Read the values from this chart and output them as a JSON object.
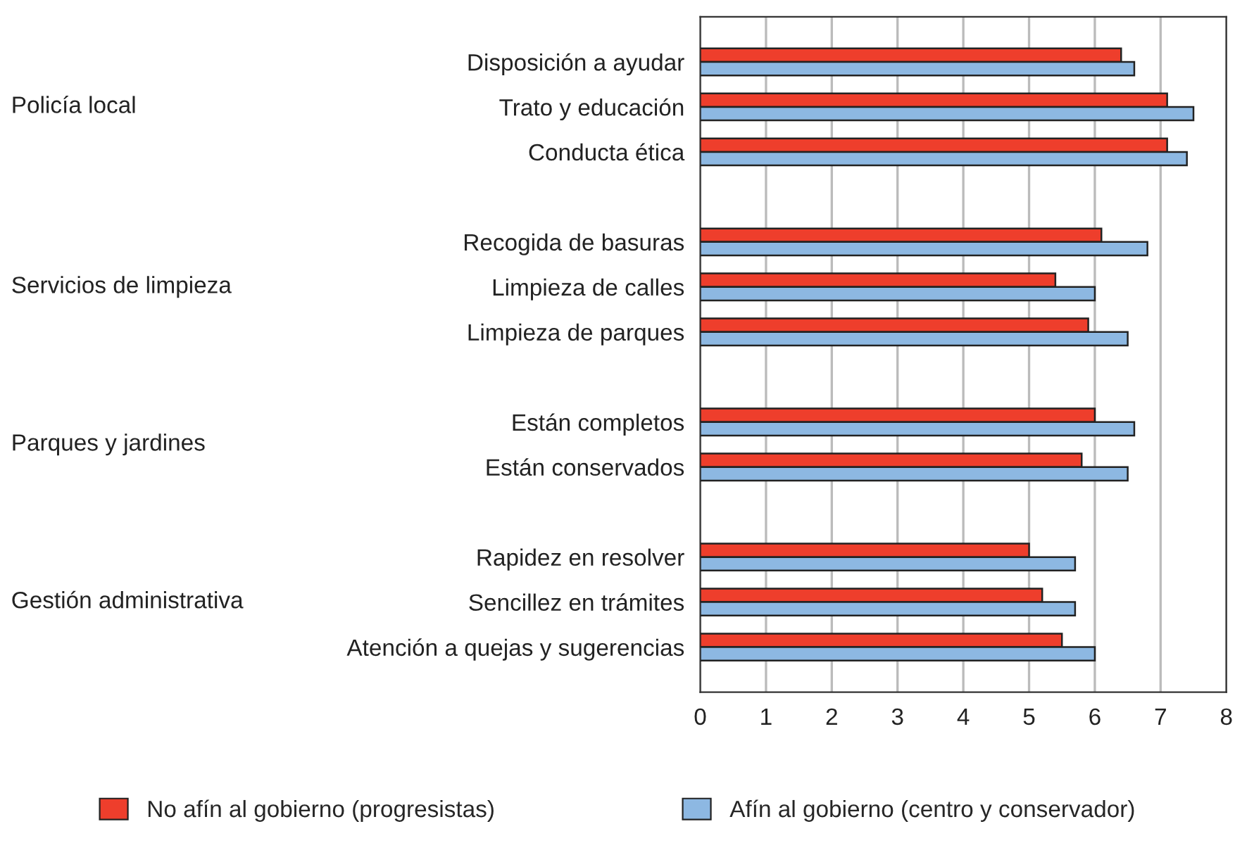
{
  "chart_data": {
    "type": "bar",
    "orientation": "horizontal",
    "categories": [
      "Disposición a ayudar",
      "Trato y educación",
      "Conducta ética",
      null,
      "Recogida de basuras",
      "Limpieza de calles",
      "Limpieza de parques",
      null,
      "Están completos",
      "Están conservados",
      null,
      "Rapidez en resolver",
      "Sencillez en trámites",
      "Atención a quejas y sugerencias"
    ],
    "series": [
      {
        "name": "No afín al gobierno (progresistas)",
        "color": "#ee3e2c",
        "values": [
          6.4,
          7.1,
          7.1,
          null,
          6.1,
          5.4,
          5.9,
          null,
          6.0,
          5.8,
          null,
          5.0,
          5.2,
          5.5
        ]
      },
      {
        "name": "Afín al gobierno (centro y conservador)",
        "color": "#8db8e2",
        "values": [
          6.6,
          7.5,
          7.4,
          null,
          6.8,
          6.0,
          6.5,
          null,
          6.6,
          6.5,
          null,
          5.7,
          5.7,
          6.0
        ]
      }
    ],
    "annotations": [
      "Policía local",
      "Servicios de limpieza",
      "Parques y jardines",
      "Gestión administrativa"
    ],
    "xlim": [
      0,
      8
    ],
    "xticks": [
      0,
      1,
      2,
      3,
      4,
      5,
      6,
      7,
      8
    ],
    "grid": "x",
    "legend": "bottom"
  }
}
